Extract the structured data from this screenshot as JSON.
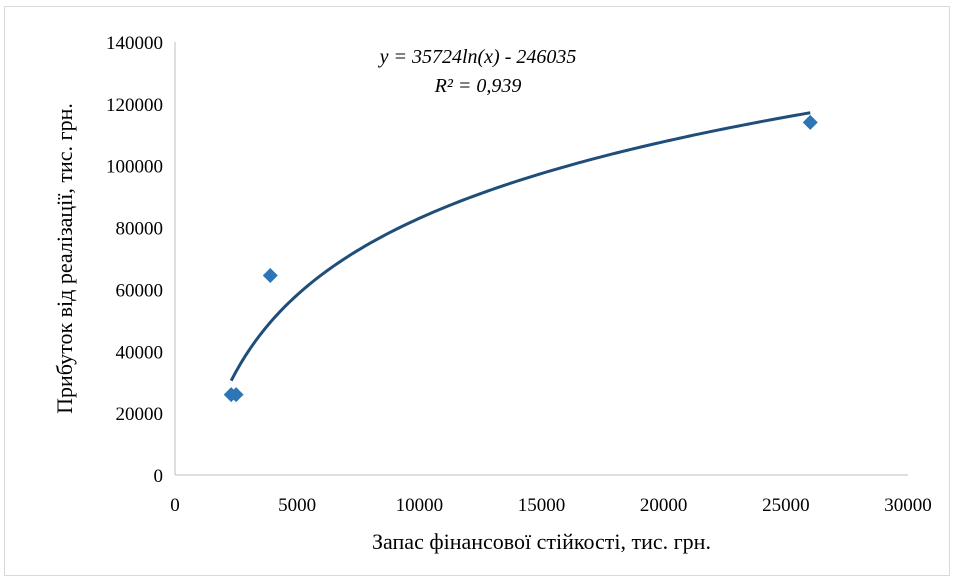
{
  "chart_data": {
    "type": "scatter",
    "xlabel": "Запас фінансової стійкості, тис. грн.",
    "ylabel": "Прибуток від реалізації, тис. грн.",
    "xlim": [
      0,
      30000
    ],
    "ylim": [
      0,
      140000
    ],
    "x_ticks": [
      "0",
      "5000",
      "10000",
      "15000",
      "20000",
      "25000",
      "30000"
    ],
    "y_ticks": [
      "0",
      "20000",
      "40000",
      "60000",
      "80000",
      "100000",
      "120000",
      "140000"
    ],
    "grid": false,
    "legend": "none",
    "series": [
      {
        "marker": "diamond",
        "color": "#2e75b6",
        "points": [
          {
            "x": 2300,
            "y": 26000
          },
          {
            "x": 2500,
            "y": 26000
          },
          {
            "x": 3900,
            "y": 64500
          },
          {
            "x": 26000,
            "y": 114000
          }
        ]
      }
    ],
    "trendline": {
      "type": "logarithmic",
      "a": 35724,
      "b": -246035,
      "x_range": [
        2300,
        26000
      ],
      "color": "#1f4e79",
      "equation_label": "y = 35724ln(x) - 246035",
      "r2_label": "R² = 0,939"
    }
  }
}
